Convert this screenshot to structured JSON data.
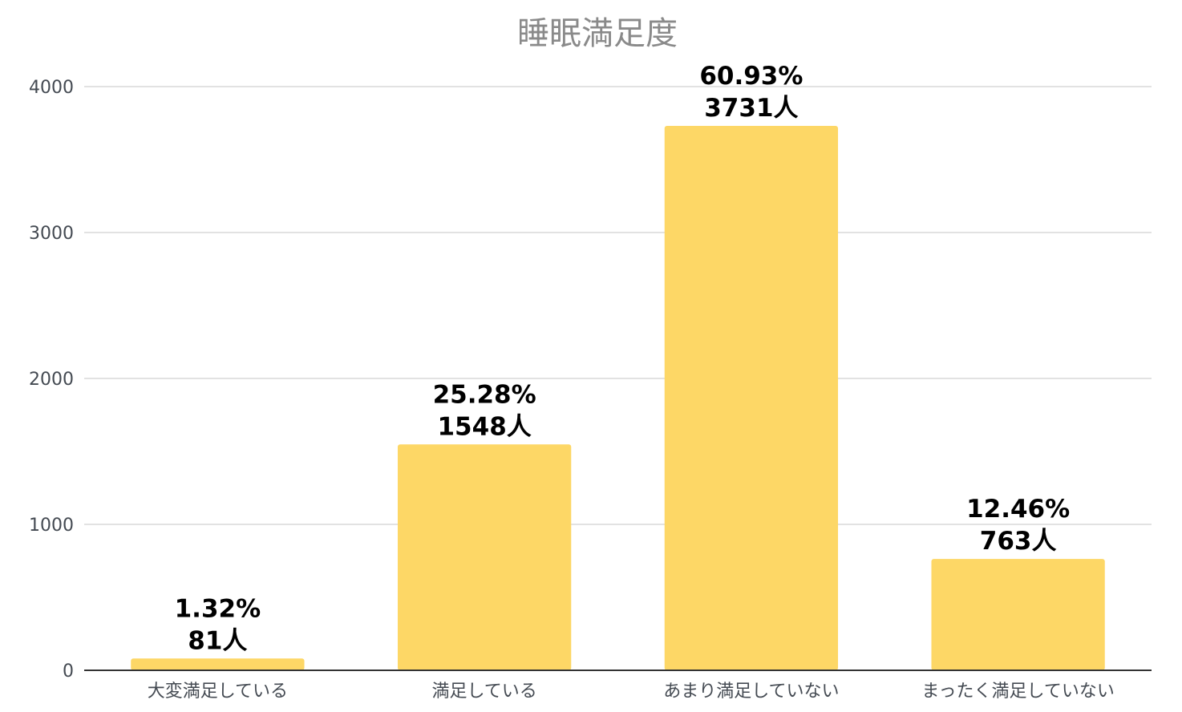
{
  "chart_data": {
    "type": "bar",
    "title": "睡眠満足度",
    "xlabel": "",
    "ylabel": "",
    "ylim": [
      0,
      4000
    ],
    "yticks": [
      0,
      1000,
      2000,
      3000,
      4000
    ],
    "grid": true,
    "categories": [
      "大変満足している",
      "満足している",
      "あまり満足していない",
      "まったく満足していない"
    ],
    "values": [
      81,
      1548,
      3731,
      763
    ],
    "percent_labels": [
      "1.32%",
      "25.28%",
      "60.93%",
      "12.46%"
    ],
    "count_labels": [
      "81人",
      "1548人",
      "3731人",
      "763人"
    ],
    "bar_color": "#fdd766"
  }
}
